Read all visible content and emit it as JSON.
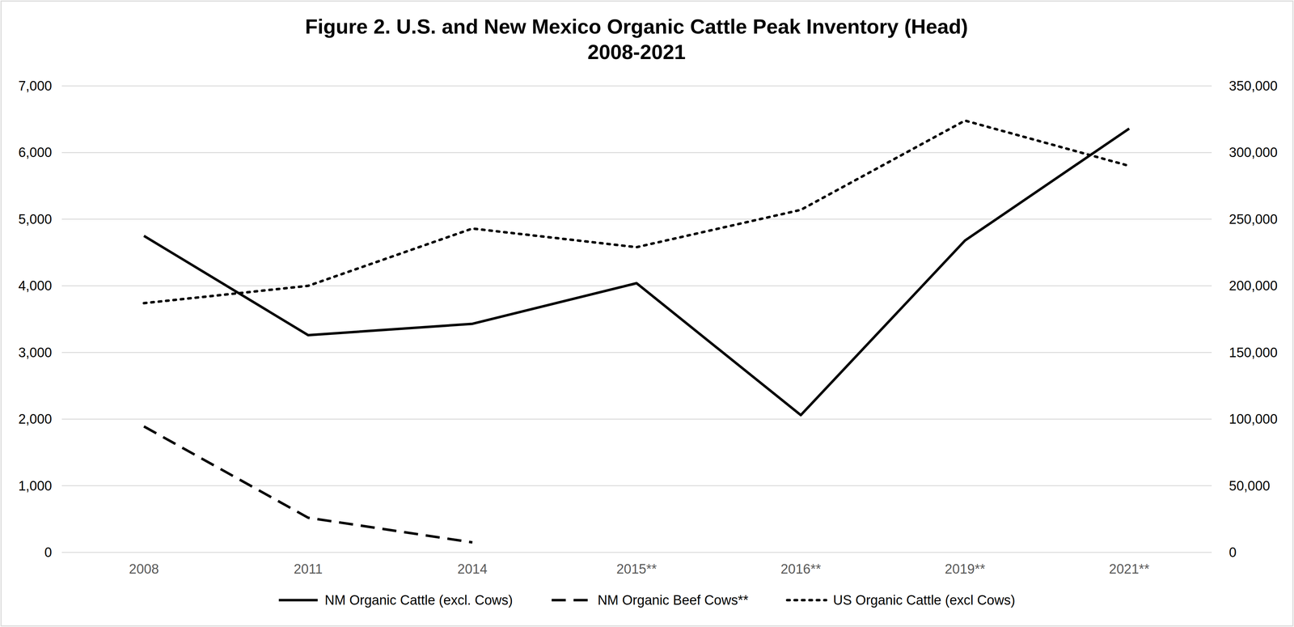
{
  "chart_data": {
    "type": "line",
    "title": "Figure 2. U.S. and New Mexico Organic Cattle Peak Inventory (Head)",
    "subtitle": "2008-2021",
    "categories": [
      "2008",
      "2011",
      "2014",
      "2015**",
      "2016**",
      "2019**",
      "2021**"
    ],
    "series": [
      {
        "name": "NM Organic Cattle (excl. Cows)",
        "color": "#000000",
        "line_style": "solid",
        "values": [
          4750,
          3260,
          3430,
          4040,
          2060,
          4680,
          6360
        ]
      },
      {
        "name": "NM Organic Beef Cows**",
        "color": "#000000",
        "line_style": "dashed",
        "values": [
          1890,
          520,
          150,
          null,
          null,
          null,
          null
        ]
      },
      {
        "name": "US Organic Cattle (excl Cows)",
        "color": "#000000",
        "line_style": "dotted",
        "axis": "y2",
        "values": [
          187000,
          200000,
          243000,
          229000,
          257000,
          324000,
          290000
        ]
      }
    ],
    "ylim": [
      0,
      7000
    ],
    "yticks": [
      0,
      {
        "value": 1000,
        "label": "1,000"
      },
      {
        "value": 2000,
        "label": "2,000"
      },
      {
        "value": 3000,
        "label": "3,000"
      },
      {
        "value": 4000,
        "label": "4,000"
      },
      {
        "value": 5000,
        "label": "5,000"
      },
      {
        "value": 6000,
        "label": "6,000"
      },
      {
        "value": 7000,
        "label": "7,000"
      }
    ],
    "y2lim": [
      0,
      350000
    ],
    "y2ticks": [
      0,
      {
        "value": 50000,
        "label": "50,000"
      },
      {
        "value": 100000,
        "label": "100,000"
      },
      {
        "value": 150000,
        "label": "150,000"
      },
      {
        "value": 200000,
        "label": "200,000"
      },
      {
        "value": 250000,
        "label": "250,000"
      },
      {
        "value": 300000,
        "label": "300,000"
      },
      {
        "value": 350000,
        "label": "350,000"
      }
    ],
    "grid": true,
    "legend": "bottom"
  }
}
